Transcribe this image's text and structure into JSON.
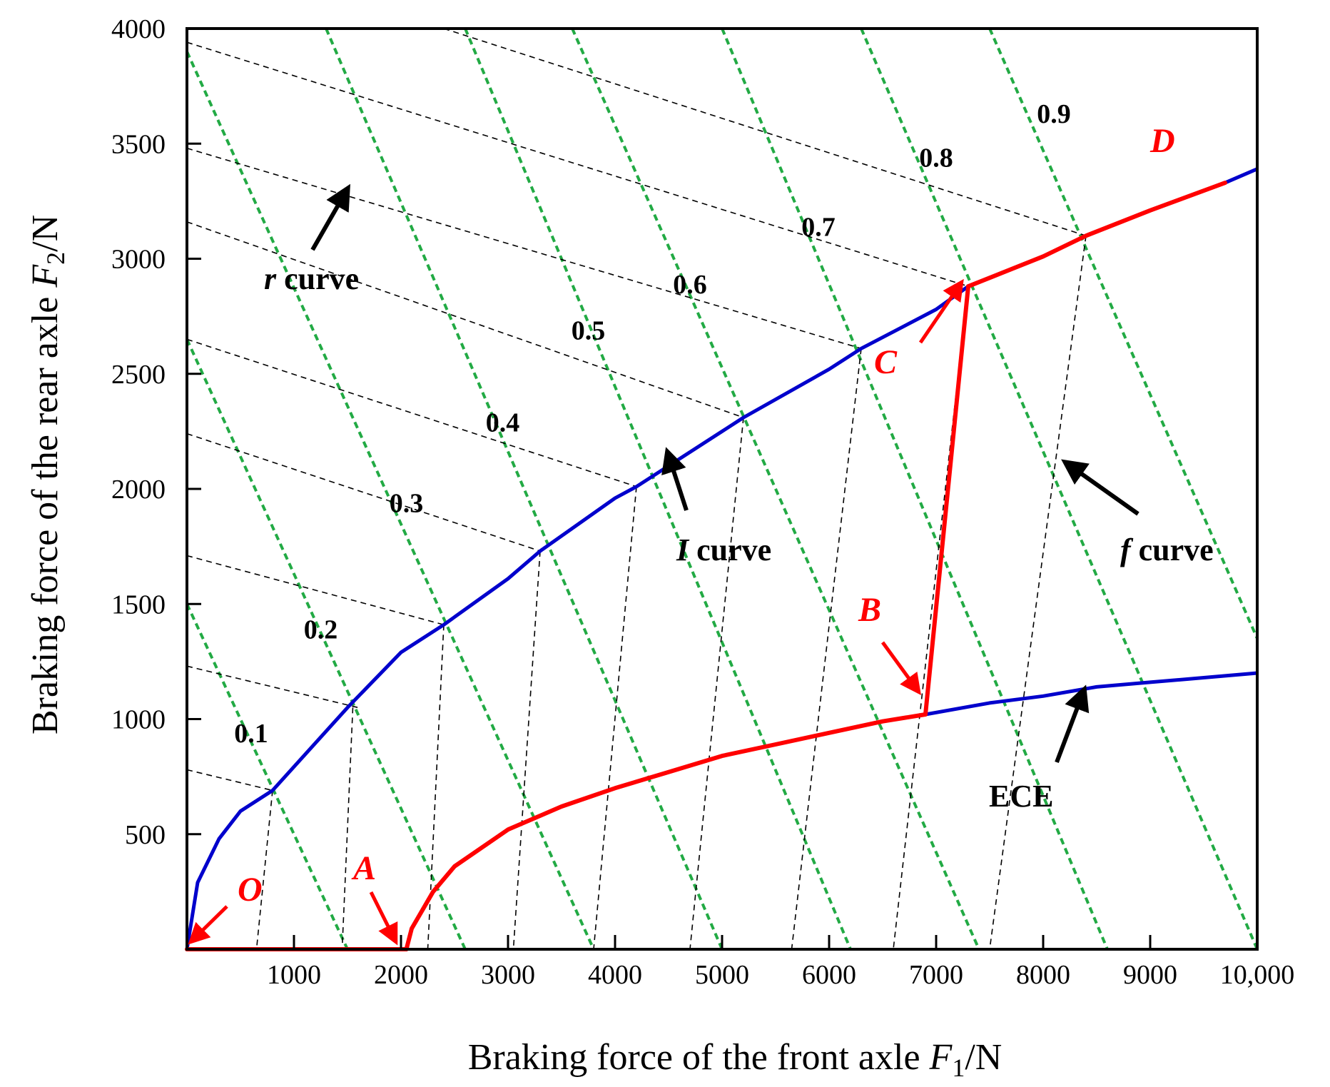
{
  "chart_data": {
    "type": "line",
    "xlabel": "Braking force of the front axle F1/N",
    "xlabel_main": "Braking force of the front axle ",
    "xlabel_var": "F",
    "xlabel_sub": "1",
    "xlabel_unit": "/N",
    "ylabel": "Braking force of the rear axle F2/N",
    "ylabel_main": "Braking force of the rear axle ",
    "ylabel_var": "F",
    "ylabel_sub": "2",
    "ylabel_unit": "/N",
    "xlim": [
      0,
      10000
    ],
    "ylim": [
      0,
      4000
    ],
    "x_ticks": [
      1000,
      2000,
      3000,
      4000,
      5000,
      6000,
      7000,
      8000,
      9000,
      10000
    ],
    "x_tick_labels": [
      "1000",
      "2000",
      "3000",
      "4000",
      "5000",
      "6000",
      "7000",
      "8000",
      "9000",
      "10,000"
    ],
    "y_ticks": [
      500,
      1000,
      1500,
      2000,
      2500,
      3000,
      3500,
      4000
    ],
    "y_tick_labels": [
      "500",
      "1000",
      "1500",
      "2000",
      "2500",
      "3000",
      "3500",
      "4000"
    ],
    "grid": false,
    "colors": {
      "i_curve": "#0000cc",
      "ece": "#0000cc",
      "strategy": "#ff0000",
      "green": "#22aa44",
      "dash": "#000000",
      "arrow": "#000000"
    },
    "i_curve": [
      [
        0,
        0
      ],
      [
        100,
        290
      ],
      [
        300,
        480
      ],
      [
        500,
        600
      ],
      [
        800,
        690
      ],
      [
        1500,
        1050
      ],
      [
        2000,
        1290
      ],
      [
        2400,
        1410
      ],
      [
        3000,
        1610
      ],
      [
        3300,
        1730
      ],
      [
        4000,
        1960
      ],
      [
        4200,
        2010
      ],
      [
        5000,
        2250
      ],
      [
        5200,
        2310
      ],
      [
        6000,
        2520
      ],
      [
        6300,
        2610
      ],
      [
        7000,
        2780
      ],
      [
        7300,
        2880
      ],
      [
        8000,
        3010
      ],
      [
        8400,
        3100
      ],
      [
        9000,
        3210
      ],
      [
        9700,
        3330
      ],
      [
        10000,
        3390
      ]
    ],
    "ece_curve": [
      [
        2050,
        0
      ],
      [
        2100,
        90
      ],
      [
        2300,
        250
      ],
      [
        2500,
        360
      ],
      [
        3000,
        520
      ],
      [
        3500,
        620
      ],
      [
        4000,
        700
      ],
      [
        4500,
        770
      ],
      [
        5000,
        840
      ],
      [
        5500,
        890
      ],
      [
        6000,
        940
      ],
      [
        6500,
        990
      ],
      [
        6900,
        1020
      ],
      [
        7500,
        1070
      ],
      [
        8000,
        1100
      ],
      [
        8500,
        1140
      ],
      [
        9000,
        1160
      ],
      [
        9500,
        1180
      ],
      [
        10000,
        1200
      ]
    ],
    "strategy_path": {
      "OA": [
        [
          0,
          0
        ],
        [
          2050,
          0
        ]
      ],
      "AB": [
        [
          2050,
          0
        ],
        [
          2100,
          90
        ],
        [
          2300,
          250
        ],
        [
          2500,
          360
        ],
        [
          3000,
          520
        ],
        [
          3500,
          620
        ],
        [
          4000,
          700
        ],
        [
          4500,
          770
        ],
        [
          5000,
          840
        ],
        [
          5500,
          890
        ],
        [
          6000,
          940
        ],
        [
          6500,
          990
        ],
        [
          6900,
          1020
        ]
      ],
      "BC": [
        [
          6900,
          1020
        ],
        [
          7300,
          2880
        ]
      ],
      "CD": [
        [
          7300,
          2880
        ],
        [
          8000,
          3010
        ],
        [
          8400,
          3100
        ],
        [
          9000,
          3210
        ],
        [
          9700,
          3330
        ]
      ]
    },
    "f_lines": [
      {
        "mu": "0.1",
        "line": [
          [
            0,
            1500
          ],
          [
            1500,
            0
          ]
        ]
      },
      {
        "mu": "0.2",
        "line": [
          [
            0,
            2650
          ],
          [
            2600,
            0
          ]
        ]
      },
      {
        "mu": "0.3",
        "line": [
          [
            0,
            3900
          ],
          [
            3800,
            0
          ]
        ]
      },
      {
        "mu": "0.4",
        "line": [
          [
            1300,
            4000
          ],
          [
            5000,
            0
          ]
        ]
      },
      {
        "mu": "0.5",
        "line": [
          [
            2600,
            4000
          ],
          [
            6200,
            0
          ]
        ]
      },
      {
        "mu": "0.6",
        "line": [
          [
            3600,
            4000
          ],
          [
            7400,
            0
          ]
        ]
      },
      {
        "mu": "0.7",
        "line": [
          [
            5000,
            4000
          ],
          [
            8600,
            0
          ]
        ]
      },
      {
        "mu": "0.8",
        "line": [
          [
            6300,
            4000
          ],
          [
            10000,
            0
          ]
        ]
      },
      {
        "mu": "0.9",
        "line": [
          [
            7500,
            4000
          ],
          [
            10000,
            1350
          ]
        ]
      }
    ],
    "r_lines": [
      [
        [
          0,
          780
        ],
        [
          800,
          690
        ]
      ],
      [
        [
          0,
          1230
        ],
        [
          1600,
          1050
        ]
      ],
      [
        [
          0,
          1710
        ],
        [
          2400,
          1410
        ]
      ],
      [
        [
          0,
          2240
        ],
        [
          3300,
          1730
        ]
      ],
      [
        [
          0,
          2650
        ],
        [
          4200,
          2010
        ]
      ],
      [
        [
          0,
          3160
        ],
        [
          5200,
          2310
        ]
      ],
      [
        [
          0,
          3480
        ],
        [
          6300,
          2610
        ]
      ],
      [
        [
          0,
          3940
        ],
        [
          7300,
          2880
        ]
      ],
      [
        [
          2400,
          4000
        ],
        [
          8400,
          3100
        ]
      ]
    ],
    "f_curve_lines": [
      [
        [
          800,
          690
        ],
        [
          650,
          0
        ]
      ],
      [
        [
          1550,
          1050
        ],
        [
          1450,
          0
        ]
      ],
      [
        [
          2400,
          1410
        ],
        [
          2250,
          0
        ]
      ],
      [
        [
          3300,
          1730
        ],
        [
          3050,
          0
        ]
      ],
      [
        [
          4200,
          2010
        ],
        [
          3800,
          0
        ]
      ],
      [
        [
          5200,
          2310
        ],
        [
          4700,
          0
        ]
      ],
      [
        [
          6300,
          2610
        ],
        [
          5650,
          0
        ]
      ],
      [
        [
          7300,
          2880
        ],
        [
          6600,
          0
        ]
      ],
      [
        [
          8400,
          3100
        ],
        [
          7500,
          0
        ]
      ]
    ],
    "mu_labels": [
      "0.1",
      "0.2",
      "0.3",
      "0.4",
      "0.5",
      "0.6",
      "0.7",
      "0.8",
      "0.9"
    ],
    "annotations": {
      "r_var": "r",
      "r_text": " curve",
      "i_var": "I",
      "i_text": " curve",
      "f_var": "f",
      "f_text": " curve",
      "ece": "ECE",
      "O": "O",
      "A": "A",
      "B": "B",
      "C": "C",
      "D": "D"
    }
  }
}
